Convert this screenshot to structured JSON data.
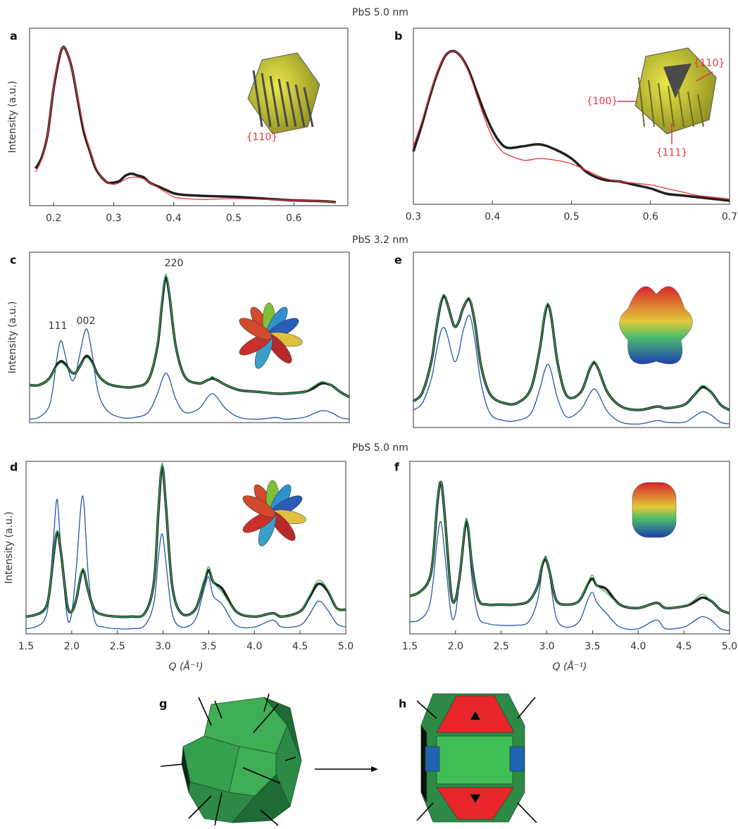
{
  "headings": [
    "PbS 5.0 nm",
    "PbS 3.2 nm",
    "PbS 5.0 nm"
  ],
  "chart_data": [
    {
      "type": "line",
      "panel": "a",
      "y_label": "Intensity (a.u.)",
      "annotations": [
        "{110}"
      ],
      "x": [
        0.17,
        0.18,
        0.19,
        0.2,
        0.21,
        0.215,
        0.22,
        0.23,
        0.24,
        0.25,
        0.26,
        0.27,
        0.28,
        0.29,
        0.3,
        0.31,
        0.32,
        0.33,
        0.34,
        0.35,
        0.36,
        0.38,
        0.4,
        0.42,
        0.45,
        0.5,
        0.55,
        0.6,
        0.65,
        0.67
      ],
      "series": [
        {
          "color": "#231f20",
          "values": [
            0.21,
            0.27,
            0.4,
            0.66,
            0.84,
            0.89,
            0.88,
            0.78,
            0.6,
            0.42,
            0.31,
            0.21,
            0.16,
            0.13,
            0.13,
            0.14,
            0.17,
            0.18,
            0.17,
            0.16,
            0.13,
            0.1,
            0.07,
            0.06,
            0.055,
            0.05,
            0.04,
            0.03,
            0.025,
            0.02
          ]
        },
        {
          "color": "#e8363d",
          "values": [
            0.19,
            0.26,
            0.4,
            0.67,
            0.85,
            0.89,
            0.88,
            0.78,
            0.61,
            0.44,
            0.32,
            0.22,
            0.16,
            0.13,
            0.12,
            0.13,
            0.15,
            0.16,
            0.16,
            0.15,
            0.13,
            0.09,
            0.05,
            0.04,
            0.035,
            0.04,
            0.035,
            0.03,
            0.025,
            0.02
          ]
        }
      ],
      "xlim": [
        0.16,
        0.69
      ],
      "ylim": [
        0,
        1
      ],
      "xticks": [
        0.2,
        0.3,
        0.4,
        0.5,
        0.6
      ]
    },
    {
      "type": "line",
      "panel": "b",
      "annotations": [
        "{110}",
        "{100}",
        "{111}"
      ],
      "x": [
        0.3,
        0.31,
        0.32,
        0.33,
        0.34,
        0.35,
        0.36,
        0.37,
        0.38,
        0.39,
        0.4,
        0.41,
        0.42,
        0.44,
        0.46,
        0.48,
        0.5,
        0.52,
        0.54,
        0.56,
        0.58,
        0.6,
        0.62,
        0.64,
        0.66,
        0.68,
        0.7
      ],
      "series": [
        {
          "color": "#231f20",
          "values": [
            0.3,
            0.44,
            0.6,
            0.74,
            0.84,
            0.87,
            0.84,
            0.76,
            0.64,
            0.52,
            0.42,
            0.35,
            0.32,
            0.33,
            0.34,
            0.31,
            0.26,
            0.18,
            0.14,
            0.13,
            0.11,
            0.09,
            0.06,
            0.05,
            0.04,
            0.03,
            0.02
          ]
        },
        {
          "color": "#e8363d",
          "values": [
            0.33,
            0.46,
            0.61,
            0.75,
            0.84,
            0.87,
            0.84,
            0.75,
            0.62,
            0.49,
            0.38,
            0.31,
            0.28,
            0.25,
            0.26,
            0.25,
            0.23,
            0.19,
            0.15,
            0.13,
            0.12,
            0.11,
            0.09,
            0.07,
            0.05,
            0.04,
            0.03
          ]
        }
      ],
      "xlim": [
        0.3,
        0.7
      ],
      "ylim": [
        0,
        1
      ],
      "xticks": [
        0.3,
        0.4,
        0.5,
        0.6,
        0.7
      ]
    },
    {
      "type": "line",
      "panel": "c",
      "y_label": "Intensity (a.u.)",
      "annotations": [
        "111",
        "002",
        "220"
      ],
      "x": [
        1.5,
        1.6,
        1.7,
        1.75,
        1.8,
        1.84,
        1.88,
        1.95,
        2.0,
        2.05,
        2.12,
        2.18,
        2.25,
        2.35,
        2.5,
        2.65,
        2.8,
        2.9,
        2.95,
        2.99,
        3.03,
        3.1,
        3.2,
        3.35,
        3.45,
        3.5,
        3.55,
        3.65,
        3.8,
        4.0,
        4.2,
        4.3,
        4.5,
        4.6,
        4.7,
        4.8,
        4.9,
        5.0
      ],
      "series": [
        {
          "color": "#231f20",
          "values": [
            0.22,
            0.22,
            0.25,
            0.29,
            0.34,
            0.36,
            0.35,
            0.3,
            0.29,
            0.33,
            0.39,
            0.36,
            0.28,
            0.23,
            0.21,
            0.21,
            0.25,
            0.45,
            0.7,
            0.85,
            0.75,
            0.45,
            0.27,
            0.23,
            0.25,
            0.26,
            0.25,
            0.22,
            0.19,
            0.18,
            0.17,
            0.17,
            0.18,
            0.2,
            0.23,
            0.22,
            0.18,
            0.15
          ]
        },
        {
          "color": "#2db35a",
          "values": [
            0.22,
            0.22,
            0.25,
            0.29,
            0.33,
            0.35,
            0.34,
            0.3,
            0.29,
            0.33,
            0.38,
            0.35,
            0.28,
            0.23,
            0.21,
            0.21,
            0.25,
            0.46,
            0.72,
            0.87,
            0.76,
            0.45,
            0.27,
            0.23,
            0.25,
            0.27,
            0.25,
            0.22,
            0.19,
            0.18,
            0.17,
            0.17,
            0.18,
            0.21,
            0.24,
            0.22,
            0.18,
            0.15
          ]
        },
        {
          "color": "#2457a6",
          "values": [
            0.02,
            0.03,
            0.08,
            0.18,
            0.38,
            0.48,
            0.42,
            0.26,
            0.27,
            0.4,
            0.55,
            0.42,
            0.18,
            0.07,
            0.03,
            0.03,
            0.06,
            0.17,
            0.25,
            0.29,
            0.26,
            0.14,
            0.06,
            0.08,
            0.15,
            0.17,
            0.15,
            0.08,
            0.03,
            0.02,
            0.03,
            0.02,
            0.03,
            0.05,
            0.07,
            0.06,
            0.03,
            0.02
          ]
        }
      ],
      "xlim": [
        1.5,
        5.0
      ],
      "ylim": [
        0,
        1
      ]
    },
    {
      "type": "line",
      "panel": "e",
      "x": [
        1.5,
        1.6,
        1.7,
        1.75,
        1.8,
        1.84,
        1.88,
        1.95,
        2.0,
        2.05,
        2.12,
        2.18,
        2.25,
        2.35,
        2.5,
        2.65,
        2.8,
        2.9,
        2.95,
        2.99,
        3.03,
        3.1,
        3.2,
        3.35,
        3.45,
        3.5,
        3.55,
        3.65,
        3.8,
        4.0,
        4.2,
        4.3,
        4.5,
        4.6,
        4.7,
        4.8,
        4.9,
        5.0
      ],
      "series": [
        {
          "color": "#231f20",
          "values": [
            0.15,
            0.2,
            0.38,
            0.55,
            0.7,
            0.75,
            0.7,
            0.58,
            0.6,
            0.68,
            0.73,
            0.6,
            0.35,
            0.19,
            0.14,
            0.14,
            0.22,
            0.45,
            0.63,
            0.7,
            0.62,
            0.36,
            0.18,
            0.2,
            0.33,
            0.37,
            0.33,
            0.2,
            0.12,
            0.1,
            0.12,
            0.11,
            0.13,
            0.18,
            0.23,
            0.2,
            0.13,
            0.1
          ]
        },
        {
          "color": "#2db35a",
          "values": [
            0.15,
            0.2,
            0.38,
            0.55,
            0.71,
            0.76,
            0.7,
            0.58,
            0.6,
            0.68,
            0.74,
            0.6,
            0.35,
            0.19,
            0.14,
            0.14,
            0.22,
            0.45,
            0.64,
            0.71,
            0.62,
            0.36,
            0.18,
            0.2,
            0.33,
            0.38,
            0.33,
            0.2,
            0.12,
            0.1,
            0.12,
            0.11,
            0.13,
            0.18,
            0.24,
            0.2,
            0.13,
            0.1
          ]
        },
        {
          "color": "#2457a6",
          "values": [
            0.1,
            0.14,
            0.28,
            0.42,
            0.54,
            0.57,
            0.52,
            0.38,
            0.42,
            0.55,
            0.64,
            0.5,
            0.25,
            0.08,
            0.04,
            0.04,
            0.08,
            0.22,
            0.32,
            0.36,
            0.31,
            0.16,
            0.06,
            0.1,
            0.19,
            0.22,
            0.19,
            0.09,
            0.03,
            0.02,
            0.04,
            0.03,
            0.03,
            0.06,
            0.09,
            0.07,
            0.03,
            0.02
          ]
        }
      ],
      "xlim": [
        1.5,
        5.0
      ],
      "ylim": [
        0,
        1
      ]
    },
    {
      "type": "line",
      "panel": "d",
      "y_label": "Intensity (a.u.)",
      "x_label": "Q (Å⁻¹)",
      "x": [
        1.5,
        1.6,
        1.7,
        1.75,
        1.8,
        1.84,
        1.88,
        1.95,
        2.0,
        2.05,
        2.12,
        2.18,
        2.25,
        2.35,
        2.5,
        2.65,
        2.8,
        2.9,
        2.95,
        2.99,
        3.03,
        3.1,
        3.2,
        3.35,
        3.45,
        3.5,
        3.55,
        3.65,
        3.8,
        4.0,
        4.2,
        4.3,
        4.5,
        4.6,
        4.7,
        4.8,
        4.9,
        5.0
      ],
      "series": [
        {
          "color": "#231f20",
          "values": [
            0.1,
            0.11,
            0.14,
            0.22,
            0.45,
            0.59,
            0.48,
            0.17,
            0.13,
            0.2,
            0.37,
            0.25,
            0.14,
            0.11,
            0.1,
            0.1,
            0.12,
            0.3,
            0.72,
            0.97,
            0.75,
            0.28,
            0.12,
            0.14,
            0.3,
            0.37,
            0.3,
            0.26,
            0.13,
            0.1,
            0.12,
            0.1,
            0.13,
            0.21,
            0.29,
            0.25,
            0.15,
            0.14
          ]
        },
        {
          "color": "#2db35a",
          "values": [
            0.1,
            0.11,
            0.14,
            0.22,
            0.46,
            0.6,
            0.48,
            0.17,
            0.13,
            0.2,
            0.38,
            0.25,
            0.14,
            0.11,
            0.1,
            0.1,
            0.12,
            0.3,
            0.73,
            0.99,
            0.75,
            0.28,
            0.12,
            0.14,
            0.31,
            0.39,
            0.3,
            0.24,
            0.13,
            0.1,
            0.12,
            0.1,
            0.13,
            0.22,
            0.31,
            0.26,
            0.15,
            0.14
          ]
        },
        {
          "color": "#2457a6",
          "values": [
            0.03,
            0.04,
            0.08,
            0.2,
            0.55,
            0.78,
            0.5,
            0.1,
            0.12,
            0.38,
            0.8,
            0.35,
            0.08,
            0.04,
            0.03,
            0.03,
            0.05,
            0.18,
            0.45,
            0.58,
            0.42,
            0.12,
            0.04,
            0.08,
            0.26,
            0.33,
            0.22,
            0.17,
            0.05,
            0.04,
            0.08,
            0.04,
            0.05,
            0.11,
            0.19,
            0.14,
            0.06,
            0.04
          ]
        }
      ],
      "xlim": [
        1.5,
        5.0
      ],
      "ylim": [
        0,
        1
      ],
      "xticks": [
        1.5,
        {
          "value": 2,
          "label": "2.0"
        },
        2.5,
        {
          "value": 3,
          "label": "3.0"
        },
        3.5,
        {
          "value": 4,
          "label": "4.0"
        },
        4.5,
        {
          "value": 5,
          "label": "5.0"
        }
      ]
    },
    {
      "type": "line",
      "panel": "f",
      "x_label": "Q (Å⁻¹)",
      "x": [
        1.5,
        1.6,
        1.7,
        1.75,
        1.8,
        1.84,
        1.88,
        1.95,
        2.0,
        2.05,
        2.12,
        2.18,
        2.25,
        2.35,
        2.5,
        2.65,
        2.8,
        2.9,
        2.95,
        2.99,
        3.03,
        3.1,
        3.2,
        3.35,
        3.45,
        3.5,
        3.55,
        3.65,
        3.8,
        4.0,
        4.2,
        4.3,
        4.5,
        4.6,
        4.7,
        4.8,
        4.9,
        5.0
      ],
      "series": [
        {
          "color": "#231f20",
          "values": [
            0.22,
            0.24,
            0.3,
            0.42,
            0.75,
            0.88,
            0.7,
            0.24,
            0.2,
            0.35,
            0.65,
            0.4,
            0.2,
            0.17,
            0.17,
            0.17,
            0.19,
            0.28,
            0.4,
            0.43,
            0.36,
            0.2,
            0.17,
            0.19,
            0.29,
            0.32,
            0.28,
            0.26,
            0.17,
            0.15,
            0.18,
            0.15,
            0.16,
            0.18,
            0.21,
            0.19,
            0.14,
            0.12
          ]
        },
        {
          "color": "#2db35a",
          "values": [
            0.22,
            0.24,
            0.3,
            0.42,
            0.76,
            0.88,
            0.7,
            0.24,
            0.2,
            0.35,
            0.67,
            0.4,
            0.2,
            0.17,
            0.17,
            0.17,
            0.19,
            0.28,
            0.41,
            0.44,
            0.36,
            0.2,
            0.17,
            0.19,
            0.3,
            0.34,
            0.28,
            0.24,
            0.17,
            0.15,
            0.18,
            0.15,
            0.16,
            0.19,
            0.23,
            0.19,
            0.14,
            0.12
          ]
        },
        {
          "color": "#2457a6",
          "values": [
            0.07,
            0.08,
            0.14,
            0.28,
            0.55,
            0.65,
            0.48,
            0.12,
            0.12,
            0.35,
            0.67,
            0.32,
            0.1,
            0.06,
            0.05,
            0.05,
            0.07,
            0.2,
            0.38,
            0.45,
            0.34,
            0.1,
            0.04,
            0.07,
            0.2,
            0.24,
            0.18,
            0.12,
            0.04,
            0.03,
            0.08,
            0.03,
            0.04,
            0.07,
            0.1,
            0.08,
            0.03,
            0.02
          ]
        }
      ],
      "xlim": [
        1.5,
        5.0
      ],
      "ylim": [
        0,
        1
      ],
      "xticks": [
        1.5,
        {
          "value": 2,
          "label": "2.0"
        },
        2.5,
        {
          "value": 3,
          "label": "3.0"
        },
        3.5,
        {
          "value": 4,
          "label": "4.0"
        },
        4.5,
        {
          "value": 5,
          "label": "5.0"
        }
      ]
    }
  ],
  "diagrams": [
    {
      "label": "g"
    },
    {
      "label": "h"
    }
  ]
}
